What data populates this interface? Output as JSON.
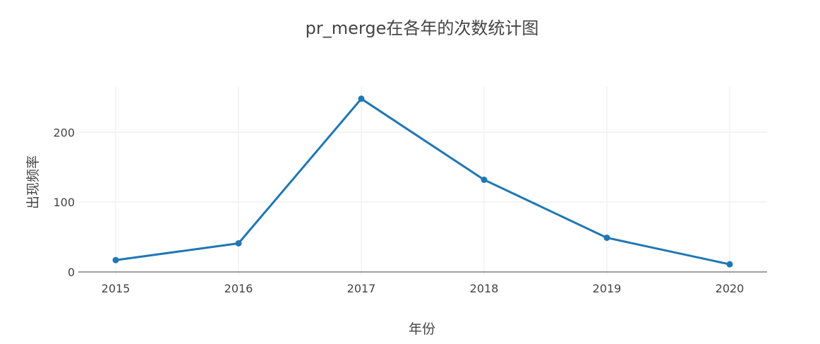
{
  "chart_data": {
    "type": "line",
    "title": "pr_merge在各年的次数统计图",
    "xlabel": "年份",
    "ylabel": "出现频率",
    "x": [
      "2015",
      "2016",
      "2017",
      "2018",
      "2019",
      "2020"
    ],
    "series": [
      {
        "values": [
          17,
          41,
          248,
          132,
          49,
          11
        ],
        "color": "#1f77b4"
      }
    ],
    "yticks": [
      0,
      100,
      200
    ],
    "ylim": [
      -4,
      265
    ],
    "grid": true,
    "legend": "none"
  }
}
